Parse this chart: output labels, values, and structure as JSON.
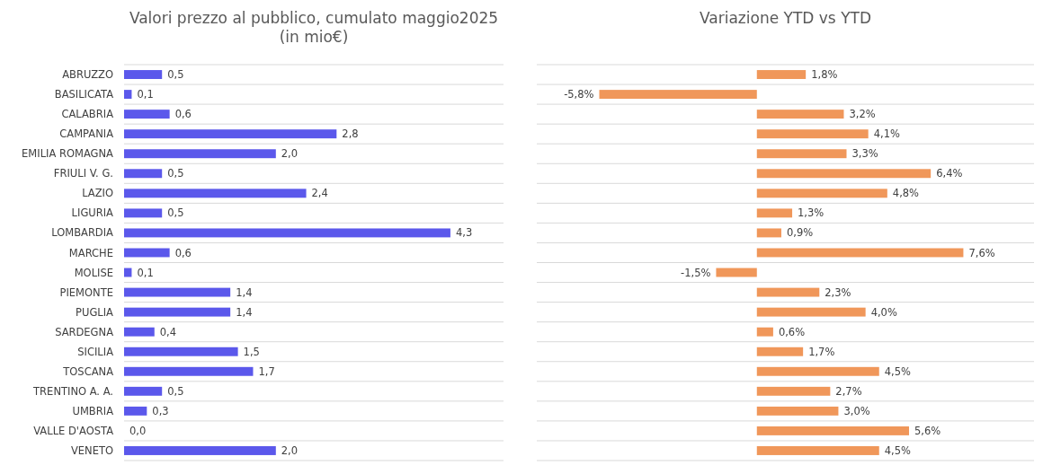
{
  "chart_data": [
    {
      "type": "bar",
      "orientation": "horizontal",
      "title": "Valori prezzo al pubblico, cumulato maggio2025\n(in mio€)",
      "categories": [
        "ABRUZZO",
        "BASILICATA",
        "CALABRIA",
        "CAMPANIA",
        "EMILIA ROMAGNA",
        "FRIULI V. G.",
        "LAZIO",
        "LIGURIA",
        "LOMBARDIA",
        "MARCHE",
        "MOLISE",
        "PIEMONTE",
        "PUGLIA",
        "SARDEGNA",
        "SICILIA",
        "TOSCANA",
        "TRENTINO A. A.",
        "UMBRIA",
        "VALLE D'AOSTA",
        "VENETO"
      ],
      "values": [
        0.5,
        0.1,
        0.6,
        2.8,
        2.0,
        0.5,
        2.4,
        0.5,
        4.3,
        0.6,
        0.1,
        1.4,
        1.4,
        0.4,
        1.5,
        1.7,
        0.5,
        0.3,
        0.0,
        2.0
      ],
      "value_labels": [
        "0,5",
        "0,1",
        "0,6",
        "2,8",
        "2,0",
        "0,5",
        "2,4",
        "0,5",
        "4,3",
        "0,6",
        "0,1",
        "1,4",
        "1,4",
        "0,4",
        "1,5",
        "1,7",
        "0,5",
        "0,3",
        "0,0",
        "2,0"
      ],
      "color": "#5b58eb",
      "xlim": [
        0,
        5
      ],
      "grid": "y",
      "tick_labels": "y"
    },
    {
      "type": "bar",
      "orientation": "horizontal",
      "title": "Variazione YTD vs YTD",
      "categories": [
        null,
        null,
        null,
        null,
        null,
        null,
        null,
        null,
        null,
        null,
        null,
        null,
        null,
        null,
        null,
        null,
        null,
        null,
        null,
        null
      ],
      "values": [
        1.8,
        -5.8,
        3.2,
        4.1,
        3.3,
        6.4,
        4.8,
        1.3,
        0.9,
        7.6,
        -1.5,
        2.3,
        4.0,
        0.6,
        1.7,
        4.5,
        2.7,
        3.0,
        5.6,
        4.5
      ],
      "value_labels": [
        "1,8%",
        "-5,8%",
        "3,2%",
        "4,1%",
        "3,3%",
        "6,4%",
        "4,8%",
        "1,3%",
        "0,9%",
        "7,6%",
        "-1,5%",
        "2,3%",
        "4,0%",
        "0,6%",
        "1,7%",
        "4,5%",
        "2,7%",
        "3,0%",
        "5,6%",
        "4,5%"
      ],
      "color": "#f0975a",
      "xlim": [
        -8.1,
        10.2
      ],
      "grid": "y",
      "tick_labels": false
    }
  ]
}
